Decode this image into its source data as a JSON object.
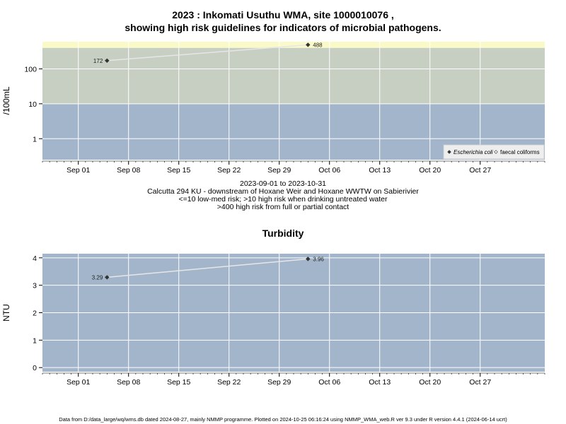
{
  "header": {
    "title_line1": "2023 : Inkomati Usuthu WMA, site 1000010076 ,",
    "title_line2": "showing high risk guidelines for indicators of microbial pathogens."
  },
  "subtitle": {
    "date_range": "2023-09-01 to 2023-10-31",
    "site_desc": "Calcutta 294 KU - downstream of Hoxane Weir and Hoxane WWTW on Sabierivier",
    "guideline1": "<=10 low-med risk; >10 high risk when drinking untreated water",
    "guideline2": ">400 high risk from full or partial contact"
  },
  "footer": {
    "text": "Data from D:/data_large/wq/wms.db dated 2024-08-27, mainly NMMP programme. Plotted on 2024-10-25 06:16:24 using NMMP_WMA_web.R ver 9.3 under R version 4.4.1 (2024-06-14 ucrt)"
  },
  "colors": {
    "band_low": "#a3b5cb",
    "band_mid": "#c7cfc3",
    "band_high": "#fafac8",
    "panel_bg": "#a3b5cb",
    "line": "#e6e6e6",
    "point": "#333333"
  },
  "chart_data": [
    {
      "type": "line",
      "title": "",
      "xlabel": "",
      "ylabel": "/100mL",
      "y_scale": "log",
      "ylim": [
        0.25,
        600
      ],
      "xlim": [
        "2023-08-27",
        "2023-11-05"
      ],
      "x_ticks": [
        "2023-09-01",
        "2023-09-08",
        "2023-09-15",
        "2023-09-22",
        "2023-09-29",
        "2023-10-06",
        "2023-10-13",
        "2023-10-20",
        "2023-10-27"
      ],
      "x_tick_labels": [
        "Sep 01",
        "Sep 08",
        "Sep 15",
        "Sep 22",
        "Sep 29",
        "Oct 06",
        "Oct 13",
        "Oct 20",
        "Oct 27"
      ],
      "y_ticks": [
        1,
        10,
        100
      ],
      "y_tick_labels": [
        "1",
        "10",
        "100"
      ],
      "bands": [
        {
          "from": 0.25,
          "to": 10,
          "color": "#a3b5cb"
        },
        {
          "from": 10,
          "to": 400,
          "color": "#c7cfc3"
        },
        {
          "from": 400,
          "to": 600,
          "color": "#fafac8"
        }
      ],
      "grid": true,
      "legend_position": "bottom-right",
      "legend": [
        {
          "label": "Escherichia coli",
          "marker": "filled-diamond"
        },
        {
          "label": "faecal coliforms",
          "marker": "open-diamond"
        }
      ],
      "series": [
        {
          "name": "Escherichia coli",
          "x": [
            "2023-09-05",
            "2023-10-03"
          ],
          "y": [
            172,
            488
          ],
          "labels": [
            "172",
            "488"
          ]
        }
      ]
    },
    {
      "type": "line",
      "title": "Turbidity",
      "xlabel": "",
      "ylabel": "NTU",
      "y_scale": "linear",
      "ylim": [
        -0.15,
        4.15
      ],
      "xlim": [
        "2023-08-27",
        "2023-11-05"
      ],
      "x_ticks": [
        "2023-09-01",
        "2023-09-08",
        "2023-09-15",
        "2023-09-22",
        "2023-09-29",
        "2023-10-06",
        "2023-10-13",
        "2023-10-20",
        "2023-10-27"
      ],
      "x_tick_labels": [
        "Sep 01",
        "Sep 08",
        "Sep 15",
        "Sep 22",
        "Sep 29",
        "Oct 06",
        "Oct 13",
        "Oct 20",
        "Oct 27"
      ],
      "y_ticks": [
        0,
        1,
        2,
        3,
        4
      ],
      "y_tick_labels": [
        "0",
        "1",
        "2",
        "3",
        "4"
      ],
      "grid": true,
      "series": [
        {
          "x": [
            "2023-09-05",
            "2023-10-03"
          ],
          "y": [
            3.29,
            3.96
          ],
          "labels": [
            "3.29",
            "3.96"
          ]
        }
      ]
    }
  ]
}
